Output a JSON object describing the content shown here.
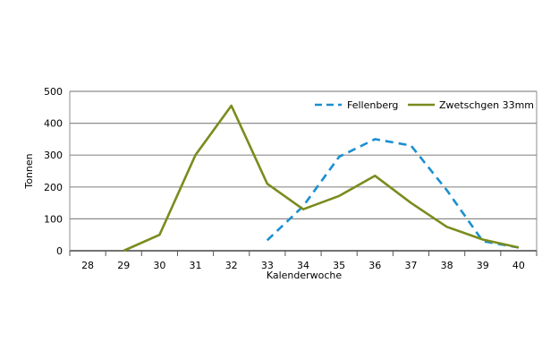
{
  "chart_data": {
    "type": "line",
    "x": [
      28,
      29,
      30,
      31,
      32,
      33,
      34,
      35,
      36,
      37,
      38,
      39,
      40
    ],
    "xlabel": "Kalenderwoche",
    "ylabel": "Tonnen",
    "ylim": [
      0,
      500
    ],
    "yticks": [
      0,
      100,
      200,
      300,
      400,
      500
    ],
    "xtick_labels": [
      "28",
      "29",
      "30",
      "31",
      "32",
      "33",
      "34",
      "35",
      "36",
      "37",
      "38",
      "39",
      "40"
    ],
    "grid": true,
    "legend_position": "top-right",
    "series": [
      {
        "name": "Fellenberg",
        "style": "dashed",
        "color": "#1a8fd0",
        "values": [
          null,
          null,
          null,
          null,
          null,
          33,
          140,
          295,
          350,
          330,
          190,
          30,
          10
        ]
      },
      {
        "name": "Zwetschgen 33mm",
        "style": "solid",
        "color": "#7a8c1e",
        "values": [
          null,
          0,
          50,
          300,
          455,
          210,
          130,
          172,
          235,
          150,
          75,
          35,
          10
        ]
      }
    ]
  }
}
